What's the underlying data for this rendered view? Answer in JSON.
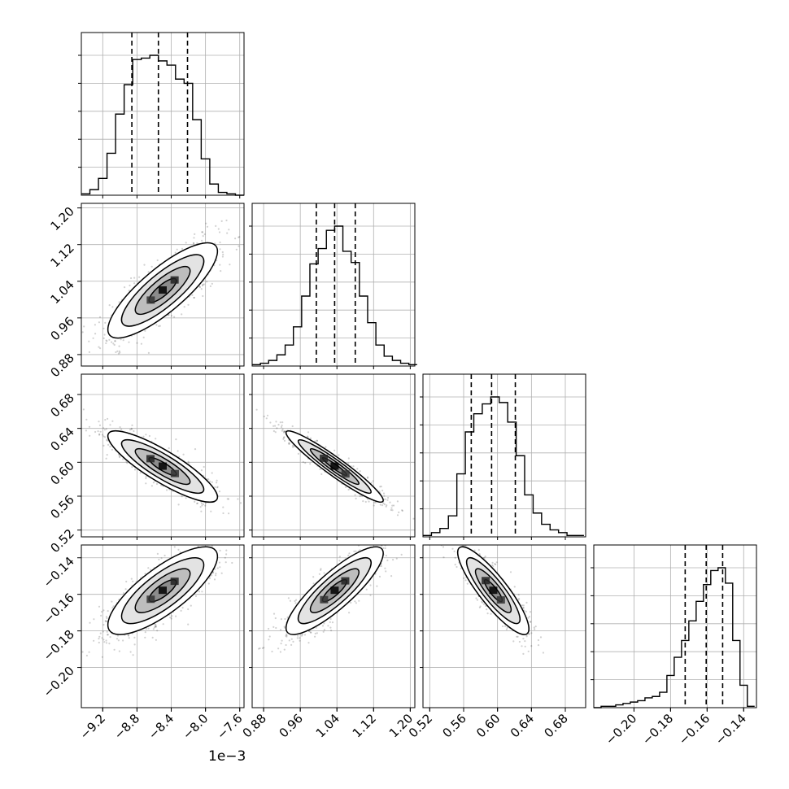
{
  "chart_data": {
    "type": "corner",
    "offset_text": "1e−3",
    "parameters": [
      {
        "id": "p0",
        "range": [
          -9.45,
          -7.55
        ],
        "ticks": [
          -9.2,
          -8.8,
          -8.4,
          -8.0,
          -7.6
        ],
        "tick_labels": [
          "−9.2",
          "−8.8",
          "−8.4",
          "−8.0",
          "−7.6"
        ],
        "quantiles": [
          -8.86,
          -8.55,
          -8.21
        ],
        "hist_bin_edges": [
          -9.45,
          -9.35,
          -9.25,
          -9.15,
          -9.05,
          -8.95,
          -8.85,
          -8.75,
          -8.65,
          -8.55,
          -8.45,
          -8.35,
          -8.25,
          -8.15,
          -8.05,
          -7.95,
          -7.85,
          -7.75,
          -7.65,
          -7.55
        ],
        "hist_counts": [
          0.01,
          0.04,
          0.12,
          0.3,
          0.58,
          0.79,
          0.97,
          0.98,
          1.0,
          0.96,
          0.93,
          0.83,
          0.8,
          0.54,
          0.26,
          0.08,
          0.02,
          0.01,
          0.0
        ]
      },
      {
        "id": "p1",
        "range": [
          0.855,
          1.21
        ],
        "ticks": [
          0.88,
          0.96,
          1.04,
          1.12,
          1.2
        ],
        "tick_labels": [
          "0.88",
          "0.96",
          "1.04",
          "1.12",
          "1.20"
        ],
        "quantiles": [
          0.995,
          1.035,
          1.08
        ],
        "hist_bin_edges": [
          0.855,
          0.873,
          0.891,
          0.909,
          0.927,
          0.945,
          0.963,
          0.981,
          0.999,
          1.017,
          1.035,
          1.053,
          1.071,
          1.089,
          1.107,
          1.125,
          1.143,
          1.161,
          1.179,
          1.197,
          1.215
        ],
        "hist_counts": [
          0.01,
          0.02,
          0.04,
          0.08,
          0.15,
          0.28,
          0.5,
          0.73,
          0.84,
          0.97,
          1.0,
          0.82,
          0.74,
          0.5,
          0.31,
          0.15,
          0.07,
          0.04,
          0.02,
          0.01
        ]
      },
      {
        "id": "p2",
        "range": [
          0.512,
          0.704
        ],
        "ticks": [
          0.52,
          0.56,
          0.6,
          0.64,
          0.68
        ],
        "tick_labels": [
          "0.52",
          "0.56",
          "0.60",
          "0.64",
          "0.68"
        ],
        "quantiles": [
          0.569,
          0.593,
          0.621
        ],
        "hist_bin_edges": [
          0.512,
          0.522,
          0.532,
          0.542,
          0.552,
          0.562,
          0.572,
          0.582,
          0.592,
          0.602,
          0.612,
          0.622,
          0.632,
          0.642,
          0.652,
          0.662,
          0.672,
          0.682,
          0.692,
          0.702
        ],
        "hist_counts": [
          0.01,
          0.03,
          0.06,
          0.15,
          0.45,
          0.75,
          0.88,
          0.95,
          1.0,
          0.96,
          0.82,
          0.58,
          0.3,
          0.17,
          0.09,
          0.05,
          0.03,
          0.01,
          0.01
        ]
      },
      {
        "id": "p3",
        "range": [
          -0.222,
          -0.133
        ],
        "ticks": [
          -0.2,
          -0.18,
          -0.16,
          -0.14
        ],
        "tick_labels": [
          "−0.20",
          "−0.18",
          "−0.16",
          "−0.14"
        ],
        "quantiles": [
          -0.172,
          -0.1605,
          -0.1515
        ],
        "hist_bin_edges": [
          -0.222,
          -0.218,
          -0.214,
          -0.21,
          -0.206,
          -0.202,
          -0.198,
          -0.194,
          -0.19,
          -0.186,
          -0.182,
          -0.178,
          -0.174,
          -0.17,
          -0.166,
          -0.162,
          -0.158,
          -0.154,
          -0.15,
          -0.146,
          -0.142,
          -0.138,
          -0.134
        ],
        "hist_counts": [
          0.0,
          0.01,
          0.01,
          0.02,
          0.03,
          0.04,
          0.05,
          0.07,
          0.08,
          0.11,
          0.23,
          0.36,
          0.48,
          0.62,
          0.76,
          0.88,
          0.98,
          1.0,
          0.89,
          0.48,
          0.16,
          0.01
        ]
      }
    ],
    "pairs": [
      {
        "x": 0,
        "y": 1,
        "center": [
          -8.5,
          1.02
        ],
        "sd": [
          0.32,
          0.052
        ],
        "corr": 0.82
      },
      {
        "x": 0,
        "y": 2,
        "center": [
          -8.5,
          0.595
        ],
        "sd": [
          0.32,
          0.021
        ],
        "corr": -0.86
      },
      {
        "x": 1,
        "y": 2,
        "center": [
          1.035,
          0.595
        ],
        "sd": [
          0.053,
          0.021
        ],
        "corr": -0.95
      },
      {
        "x": 0,
        "y": 3,
        "center": [
          -8.5,
          -0.158
        ],
        "sd": [
          0.32,
          0.012
        ],
        "corr": 0.78
      },
      {
        "x": 1,
        "y": 3,
        "center": [
          1.035,
          -0.158
        ],
        "sd": [
          0.053,
          0.012
        ],
        "corr": 0.85
      },
      {
        "x": 2,
        "y": 3,
        "center": [
          0.595,
          -0.158
        ],
        "sd": [
          0.021,
          0.012
        ],
        "corr": -0.87
      }
    ],
    "contour_levels_sigma": [
      0.5,
      1.0,
      1.5,
      2.0
    ],
    "grid": true,
    "colors": {
      "line": "#000000",
      "grid": "#b0b0b0",
      "points": "#000000"
    }
  }
}
